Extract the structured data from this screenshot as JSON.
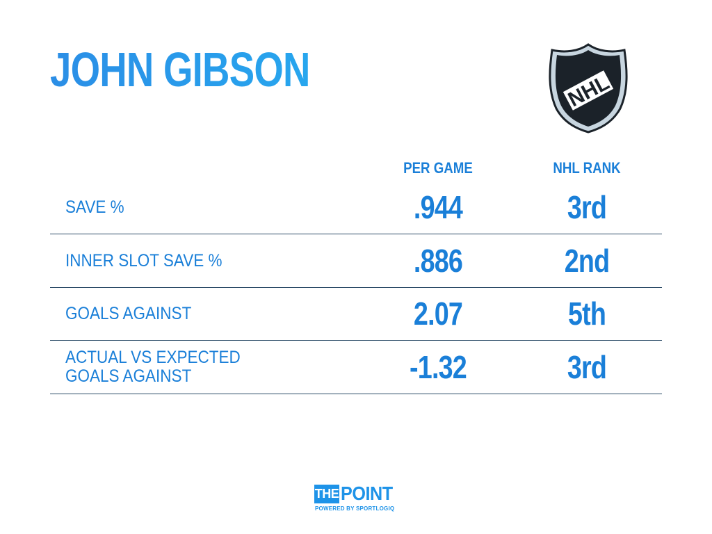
{
  "header": {
    "title": "JOHN GIBSON",
    "logo_text": "NHL"
  },
  "columns": {
    "per_game": "PER GAME",
    "nhl_rank": "NHL RANK"
  },
  "rows": [
    {
      "label": "SAVE %",
      "per_game": ".944",
      "rank": "3rd"
    },
    {
      "label": "INNER SLOT SAVE %",
      "per_game": ".886",
      "rank": "2nd"
    },
    {
      "label": "GOALS AGAINST",
      "per_game": "2.07",
      "rank": "5th"
    },
    {
      "label": "ACTUAL VS EXPECTED\nGOALS AGAINST",
      "per_game": "-1.32",
      "rank": "3rd"
    }
  ],
  "footer": {
    "brand_the": "THE",
    "brand_point": "POINT",
    "powered_by": "POWERED BY SPORTLOGIQ"
  },
  "colors": {
    "accent": "#1a7fd8",
    "divider": "#2a4a66",
    "shield_dark": "#1b2229",
    "shield_light": "#c8d6e0"
  }
}
